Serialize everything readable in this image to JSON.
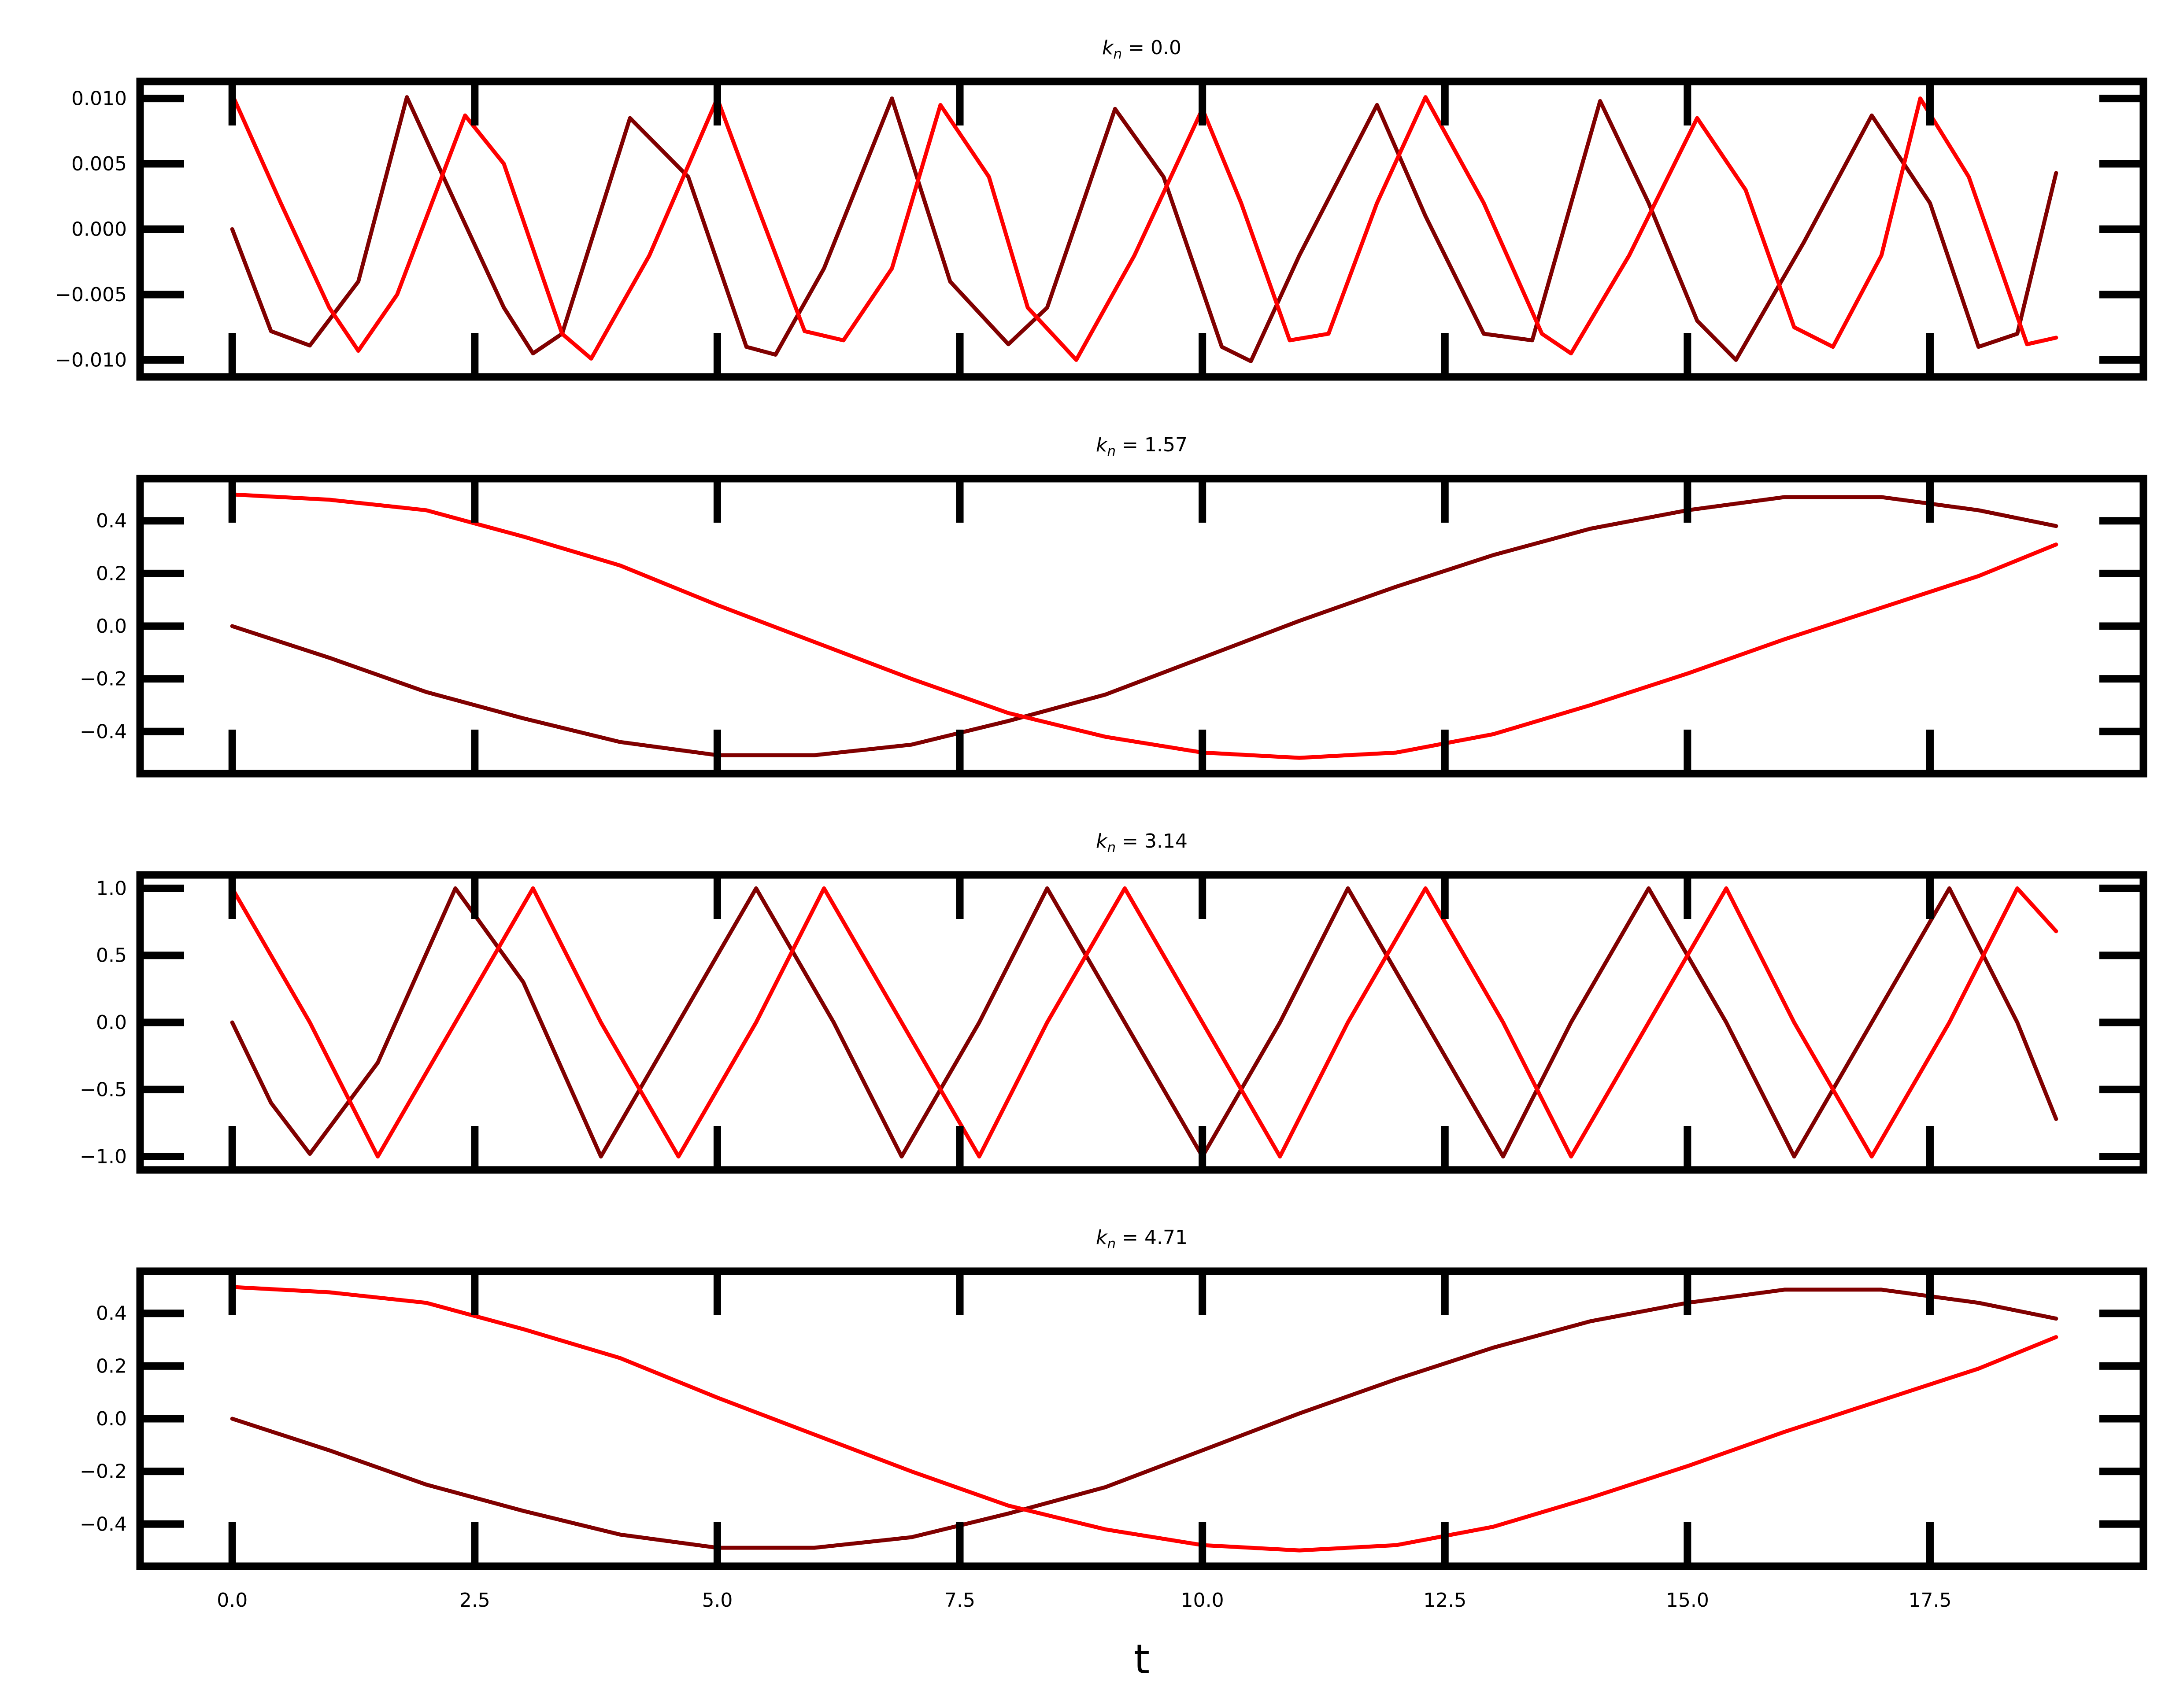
{
  "chart_data": {
    "type": "line",
    "xlabel": "t",
    "x_ticks": [
      0.0,
      2.5,
      5.0,
      7.5,
      10.0,
      12.5,
      15.0,
      17.5
    ],
    "x_tick_labels": [
      "0.0",
      "2.5",
      "5.0",
      "7.5",
      "10.0",
      "12.5",
      "15.0",
      "17.5"
    ],
    "xlim": [
      -0.95,
      19.7
    ],
    "series_colors": [
      "#800000",
      "#ff0000"
    ],
    "panels": [
      {
        "title": "k_n = 0.0",
        "title_parts": {
          "sym": "k",
          "sub": "n",
          "rest": " = 0.0"
        },
        "ylim": [
          -0.0113,
          0.0113
        ],
        "y_ticks": [
          -0.01,
          -0.005,
          0.0,
          0.005,
          0.01
        ],
        "y_tick_labels": [
          "−0.010",
          "−0.005",
          "0.000",
          "0.005",
          "0.010"
        ],
        "series": [
          {
            "color": "#800000",
            "points": [
              [
                0,
                0
              ],
              [
                0.4,
                -0.0078
              ],
              [
                0.8,
                -0.0089
              ],
              [
                1.3,
                -0.004
              ],
              [
                1.8,
                0.0101
              ],
              [
                2.3,
                0.002
              ],
              [
                2.8,
                -0.006
              ],
              [
                3.1,
                -0.0095
              ],
              [
                3.4,
                -0.008
              ],
              [
                4.1,
                0.0085
              ],
              [
                4.7,
                0.004
              ],
              [
                5.3,
                -0.009
              ],
              [
                5.6,
                -0.0096
              ],
              [
                6.1,
                -0.003
              ],
              [
                6.8,
                0.01
              ],
              [
                7.4,
                -0.004
              ],
              [
                8.0,
                -0.0088
              ],
              [
                8.4,
                -0.006
              ],
              [
                9.1,
                0.0092
              ],
              [
                9.6,
                0.004
              ],
              [
                10.2,
                -0.009
              ],
              [
                10.5,
                -0.0101
              ],
              [
                11.0,
                -0.002
              ],
              [
                11.8,
                0.0095
              ],
              [
                12.3,
                0.001
              ],
              [
                12.9,
                -0.008
              ],
              [
                13.4,
                -0.0085
              ],
              [
                14.1,
                0.0098
              ],
              [
                14.6,
                0.002
              ],
              [
                15.1,
                -0.007
              ],
              [
                15.5,
                -0.01
              ],
              [
                16.2,
                -0.001
              ],
              [
                16.9,
                0.0087
              ],
              [
                17.5,
                0.002
              ],
              [
                18.0,
                -0.009
              ],
              [
                18.4,
                -0.008
              ],
              [
                18.8,
                0.0043
              ]
            ]
          },
          {
            "color": "#ff0000",
            "points": [
              [
                0,
                0.0103
              ],
              [
                0.5,
                0.002
              ],
              [
                1.0,
                -0.006
              ],
              [
                1.3,
                -0.0093
              ],
              [
                1.7,
                -0.005
              ],
              [
                2.4,
                0.0087
              ],
              [
                2.8,
                0.005
              ],
              [
                3.4,
                -0.008
              ],
              [
                3.7,
                -0.0099
              ],
              [
                4.3,
                -0.002
              ],
              [
                5.0,
                0.01
              ],
              [
                5.4,
                0.002
              ],
              [
                5.9,
                -0.0078
              ],
              [
                6.3,
                -0.0085
              ],
              [
                6.8,
                -0.003
              ],
              [
                7.3,
                0.0095
              ],
              [
                7.8,
                0.004
              ],
              [
                8.2,
                -0.006
              ],
              [
                8.7,
                -0.01
              ],
              [
                9.3,
                -0.002
              ],
              [
                10.0,
                0.0092
              ],
              [
                10.4,
                0.002
              ],
              [
                10.9,
                -0.0085
              ],
              [
                11.3,
                -0.008
              ],
              [
                11.8,
                0.002
              ],
              [
                12.3,
                0.0101
              ],
              [
                12.9,
                0.002
              ],
              [
                13.5,
                -0.008
              ],
              [
                13.8,
                -0.0095
              ],
              [
                14.4,
                -0.002
              ],
              [
                15.1,
                0.0085
              ],
              [
                15.6,
                0.003
              ],
              [
                16.1,
                -0.0075
              ],
              [
                16.5,
                -0.009
              ],
              [
                17.0,
                -0.002
              ],
              [
                17.4,
                0.01
              ],
              [
                17.9,
                0.004
              ],
              [
                18.5,
                -0.0088
              ],
              [
                18.8,
                -0.0083
              ]
            ]
          }
        ]
      },
      {
        "title": "k_n = 1.57",
        "title_parts": {
          "sym": "k",
          "sub": "n",
          "rest": " = 1.57"
        },
        "ylim": [
          -0.56,
          0.56
        ],
        "y_ticks": [
          -0.4,
          -0.2,
          0.0,
          0.2,
          0.4
        ],
        "y_tick_labels": [
          "−0.4",
          "−0.2",
          "0.0",
          "0.2",
          "0.4"
        ],
        "series": [
          {
            "color": "#800000",
            "points": [
              [
                0,
                0
              ],
              [
                1,
                -0.12
              ],
              [
                2,
                -0.25
              ],
              [
                3,
                -0.35
              ],
              [
                4,
                -0.44
              ],
              [
                5,
                -0.49
              ],
              [
                6,
                -0.49
              ],
              [
                7,
                -0.45
              ],
              [
                8,
                -0.36
              ],
              [
                9,
                -0.26
              ],
              [
                10,
                -0.12
              ],
              [
                11,
                0.02
              ],
              [
                12,
                0.15
              ],
              [
                13,
                0.27
              ],
              [
                14,
                0.37
              ],
              [
                15,
                0.44
              ],
              [
                16,
                0.49
              ],
              [
                17,
                0.49
              ],
              [
                18,
                0.44
              ],
              [
                18.8,
                0.38
              ]
            ]
          },
          {
            "color": "#ff0000",
            "points": [
              [
                0,
                0.5
              ],
              [
                1,
                0.48
              ],
              [
                2,
                0.44
              ],
              [
                3,
                0.34
              ],
              [
                4,
                0.23
              ],
              [
                5,
                0.08
              ],
              [
                6,
                -0.06
              ],
              [
                7,
                -0.2
              ],
              [
                8,
                -0.33
              ],
              [
                9,
                -0.42
              ],
              [
                10,
                -0.48
              ],
              [
                11,
                -0.5
              ],
              [
                12,
                -0.48
              ],
              [
                13,
                -0.41
              ],
              [
                14,
                -0.3
              ],
              [
                15,
                -0.18
              ],
              [
                16,
                -0.05
              ],
              [
                17,
                0.07
              ],
              [
                18,
                0.19
              ],
              [
                18.8,
                0.31
              ]
            ]
          }
        ]
      },
      {
        "title": "k_n = 3.14",
        "title_parts": {
          "sym": "k",
          "sub": "n",
          "rest": " = 3.14"
        },
        "ylim": [
          -1.1,
          1.1
        ],
        "y_ticks": [
          -1.0,
          -0.5,
          0.0,
          0.5,
          1.0
        ],
        "y_tick_labels": [
          "−1.0",
          "−0.5",
          "0.0",
          "0.5",
          "1.0"
        ],
        "series": [
          {
            "color": "#800000",
            "points": [
              [
                0,
                0
              ],
              [
                0.4,
                -0.6
              ],
              [
                0.8,
                -0.98
              ],
              [
                1.5,
                -0.3
              ],
              [
                2.3,
                1.0
              ],
              [
                3.0,
                0.3
              ],
              [
                3.8,
                -1.0
              ],
              [
                4.6,
                0.0
              ],
              [
                5.4,
                1.0
              ],
              [
                6.2,
                0.0
              ],
              [
                6.9,
                -1.0
              ],
              [
                7.7,
                0.0
              ],
              [
                8.4,
                1.0
              ],
              [
                9.2,
                0.0
              ],
              [
                10.0,
                -1.0
              ],
              [
                10.8,
                0.0
              ],
              [
                11.5,
                1.0
              ],
              [
                12.3,
                0.0
              ],
              [
                13.1,
                -1.0
              ],
              [
                13.8,
                0.0
              ],
              [
                14.6,
                1.0
              ],
              [
                15.4,
                0.0
              ],
              [
                16.1,
                -1.0
              ],
              [
                16.9,
                0.0
              ],
              [
                17.7,
                1.0
              ],
              [
                18.4,
                0.0
              ],
              [
                18.8,
                -0.72
              ]
            ]
          },
          {
            "color": "#ff0000",
            "points": [
              [
                0,
                1.0
              ],
              [
                0.8,
                0.0
              ],
              [
                1.5,
                -1.0
              ],
              [
                2.3,
                0.0
              ],
              [
                3.1,
                1.0
              ],
              [
                3.8,
                0.0
              ],
              [
                4.6,
                -1.0
              ],
              [
                5.4,
                0.0
              ],
              [
                6.1,
                1.0
              ],
              [
                6.9,
                0.0
              ],
              [
                7.7,
                -1.0
              ],
              [
                8.4,
                0.0
              ],
              [
                9.2,
                1.0
              ],
              [
                10.0,
                0.0
              ],
              [
                10.8,
                -1.0
              ],
              [
                11.5,
                0.0
              ],
              [
                12.3,
                1.0
              ],
              [
                13.1,
                0.0
              ],
              [
                13.8,
                -1.0
              ],
              [
                14.6,
                0.0
              ],
              [
                15.4,
                1.0
              ],
              [
                16.1,
                0.0
              ],
              [
                16.9,
                -1.0
              ],
              [
                17.7,
                0.0
              ],
              [
                18.4,
                1.0
              ],
              [
                18.8,
                0.68
              ]
            ]
          }
        ]
      },
      {
        "title": "k_n = 4.71",
        "title_parts": {
          "sym": "k",
          "sub": "n",
          "rest": " = 4.71"
        },
        "ylim": [
          -0.56,
          0.56
        ],
        "y_ticks": [
          -0.4,
          -0.2,
          0.0,
          0.2,
          0.4
        ],
        "y_tick_labels": [
          "−0.4",
          "−0.2",
          "0.0",
          "0.2",
          "0.4"
        ],
        "series": [
          {
            "color": "#800000",
            "points": [
              [
                0,
                0
              ],
              [
                1,
                -0.12
              ],
              [
                2,
                -0.25
              ],
              [
                3,
                -0.35
              ],
              [
                4,
                -0.44
              ],
              [
                5,
                -0.49
              ],
              [
                6,
                -0.49
              ],
              [
                7,
                -0.45
              ],
              [
                8,
                -0.36
              ],
              [
                9,
                -0.26
              ],
              [
                10,
                -0.12
              ],
              [
                11,
                0.02
              ],
              [
                12,
                0.15
              ],
              [
                13,
                0.27
              ],
              [
                14,
                0.37
              ],
              [
                15,
                0.44
              ],
              [
                16,
                0.49
              ],
              [
                17,
                0.49
              ],
              [
                18,
                0.44
              ],
              [
                18.8,
                0.38
              ]
            ]
          },
          {
            "color": "#ff0000",
            "points": [
              [
                0,
                0.5
              ],
              [
                1,
                0.48
              ],
              [
                2,
                0.44
              ],
              [
                3,
                0.34
              ],
              [
                4,
                0.23
              ],
              [
                5,
                0.08
              ],
              [
                6,
                -0.06
              ],
              [
                7,
                -0.2
              ],
              [
                8,
                -0.33
              ],
              [
                9,
                -0.42
              ],
              [
                10,
                -0.48
              ],
              [
                11,
                -0.5
              ],
              [
                12,
                -0.48
              ],
              [
                13,
                -0.41
              ],
              [
                14,
                -0.3
              ],
              [
                15,
                -0.18
              ],
              [
                16,
                -0.05
              ],
              [
                17,
                0.07
              ],
              [
                18,
                0.19
              ],
              [
                18.8,
                0.31
              ]
            ]
          }
        ]
      }
    ]
  }
}
